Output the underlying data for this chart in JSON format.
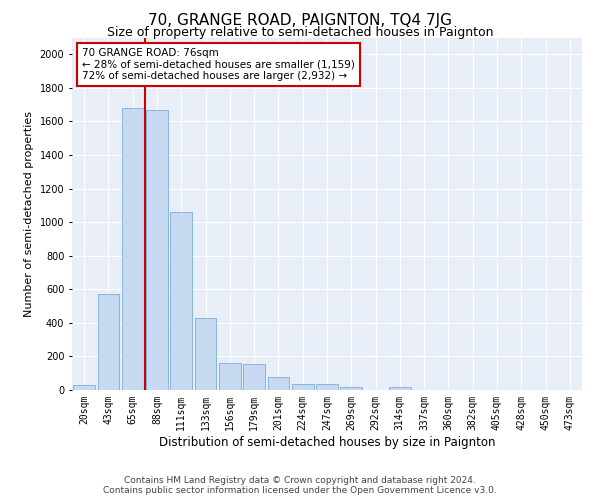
{
  "title": "70, GRANGE ROAD, PAIGNTON, TQ4 7JG",
  "subtitle": "Size of property relative to semi-detached houses in Paignton",
  "xlabel": "Distribution of semi-detached houses by size in Paignton",
  "ylabel": "Number of semi-detached properties",
  "footer_line1": "Contains HM Land Registry data © Crown copyright and database right 2024.",
  "footer_line2": "Contains public sector information licensed under the Open Government Licence v3.0.",
  "categories": [
    "20sqm",
    "43sqm",
    "65sqm",
    "88sqm",
    "111sqm",
    "133sqm",
    "156sqm",
    "179sqm",
    "201sqm",
    "224sqm",
    "247sqm",
    "269sqm",
    "292sqm",
    "314sqm",
    "337sqm",
    "360sqm",
    "382sqm",
    "405sqm",
    "428sqm",
    "450sqm",
    "473sqm"
  ],
  "values": [
    30,
    570,
    1680,
    1670,
    1060,
    430,
    160,
    155,
    75,
    35,
    35,
    18,
    0,
    15,
    0,
    0,
    0,
    0,
    0,
    0,
    0
  ],
  "bar_color": "#c6d9f0",
  "bar_edgecolor": "#7bafd4",
  "property_line_x": 2.5,
  "annotation_text_line1": "70 GRANGE ROAD: 76sqm",
  "annotation_text_line2": "← 28% of semi-detached houses are smaller (1,159)",
  "annotation_text_line3": "72% of semi-detached houses are larger (2,932) →",
  "annotation_box_color": "#ffffff",
  "annotation_box_edgecolor": "#cc0000",
  "vline_color": "#cc0000",
  "ylim": [
    0,
    2100
  ],
  "yticks": [
    0,
    200,
    400,
    600,
    800,
    1000,
    1200,
    1400,
    1600,
    1800,
    2000
  ],
  "background_color": "#e8eef8",
  "title_fontsize": 11,
  "subtitle_fontsize": 9,
  "xlabel_fontsize": 8.5,
  "ylabel_fontsize": 8,
  "tick_fontsize": 7,
  "footer_fontsize": 6.5,
  "annotation_fontsize": 7.5
}
